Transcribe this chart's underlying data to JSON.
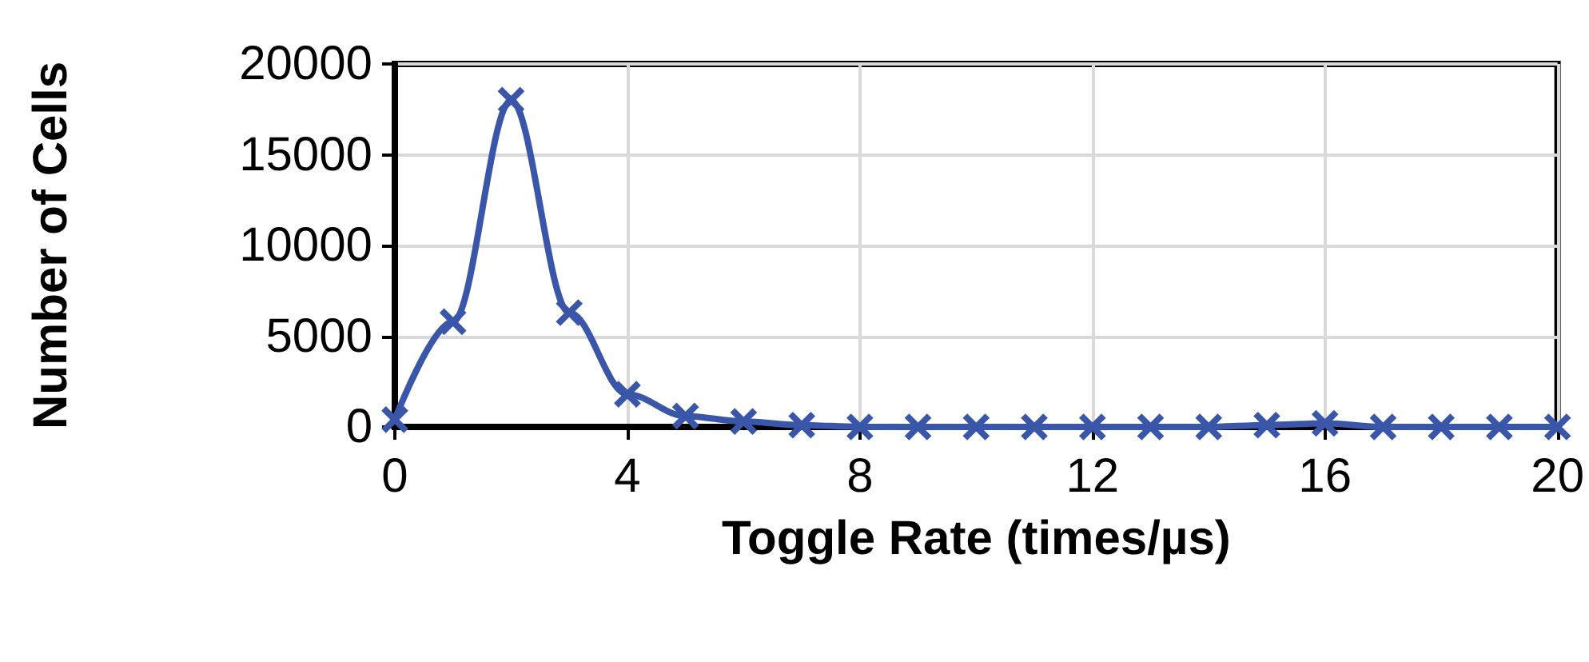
{
  "chart_data": {
    "type": "line",
    "xlabel": "Toggle Rate (times/µs)",
    "ylabel": "Number of Cells",
    "x": [
      0,
      1,
      2,
      3,
      4,
      5,
      6,
      7,
      8,
      9,
      10,
      11,
      12,
      13,
      14,
      15,
      16,
      17,
      18,
      19,
      20
    ],
    "series": [
      {
        "color": "#3a56a8",
        "values": [
          400,
          5800,
          18000,
          6300,
          1800,
          600,
          300,
          100,
          0,
          0,
          0,
          0,
          0,
          0,
          0,
          100,
          200,
          0,
          0,
          0,
          0
        ]
      }
    ],
    "xlim": [
      0,
      20
    ],
    "xticks": [
      0,
      4,
      8,
      12,
      16,
      20
    ],
    "ylim": [
      0,
      20000
    ],
    "yticks": [
      0,
      5000,
      10000,
      15000,
      20000
    ],
    "grid": true,
    "marker": "cross",
    "line_style": "solid"
  }
}
